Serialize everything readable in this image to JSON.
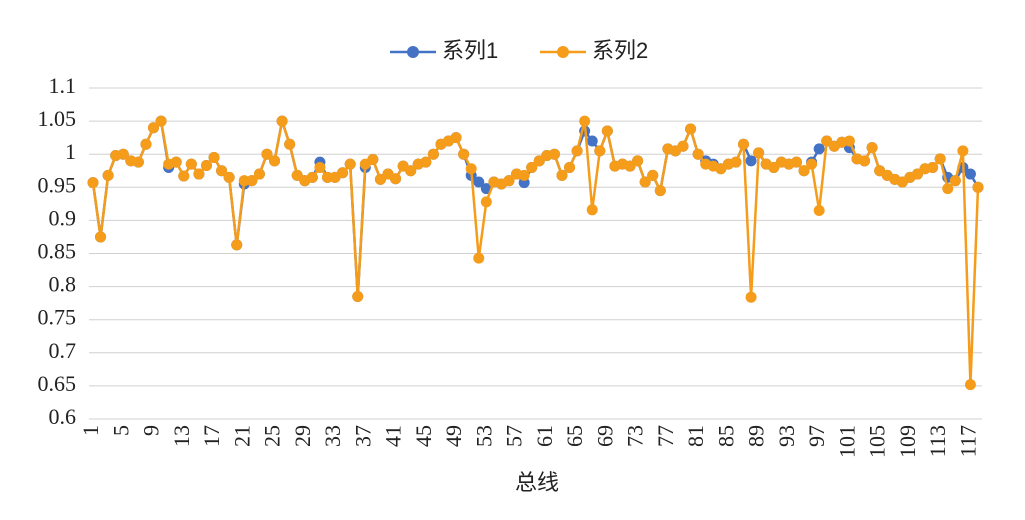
{
  "chart_data": {
    "type": "line",
    "xlabel": "总线",
    "categories": [
      "1",
      null,
      null,
      null,
      "5",
      null,
      null,
      null,
      "9",
      null,
      null,
      null,
      "13",
      null,
      null,
      null,
      "17",
      null,
      null,
      null,
      "21",
      null,
      null,
      null,
      "25",
      null,
      null,
      null,
      "29",
      null,
      null,
      null,
      "33",
      null,
      null,
      null,
      "37",
      null,
      null,
      null,
      "41",
      null,
      null,
      null,
      "45",
      null,
      null,
      null,
      "49",
      null,
      null,
      null,
      "53",
      null,
      null,
      null,
      "57",
      null,
      null,
      null,
      "61",
      null,
      null,
      null,
      "65",
      null,
      null,
      null,
      "69",
      null,
      null,
      null,
      "73",
      null,
      null,
      null,
      "77",
      null,
      null,
      null,
      "81",
      null,
      null,
      null,
      "85",
      null,
      null,
      null,
      "89",
      null,
      null,
      null,
      "93",
      null,
      null,
      null,
      "97",
      null,
      null,
      null,
      "101",
      null,
      null,
      null,
      "105",
      null,
      null,
      null,
      "109",
      null,
      null,
      null,
      "113",
      null,
      null,
      null,
      "117",
      null
    ],
    "series": [
      {
        "name": "系列1",
        "color": "#4472c4",
        "values": [
          0.957,
          0.875,
          0.968,
          0.998,
          1.0,
          0.99,
          0.988,
          1.015,
          1.04,
          1.05,
          0.98,
          0.988,
          0.967,
          0.985,
          0.97,
          0.983,
          0.995,
          0.975,
          0.965,
          0.863,
          0.955,
          0.96,
          0.97,
          1.0,
          0.99,
          1.05,
          1.015,
          0.968,
          0.96,
          0.965,
          0.988,
          0.965,
          0.965,
          0.972,
          0.985,
          0.785,
          0.98,
          0.992,
          0.962,
          0.97,
          0.963,
          0.982,
          0.975,
          0.985,
          0.988,
          1.0,
          1.015,
          1.02,
          1.025,
          1.0,
          0.968,
          0.958,
          0.948,
          0.958,
          0.955,
          0.96,
          0.97,
          0.957,
          0.98,
          0.99,
          0.998,
          1.0,
          0.968,
          0.98,
          1.005,
          1.035,
          1.02,
          1.005,
          1.035,
          0.982,
          0.985,
          0.982,
          0.99,
          0.958,
          0.968,
          0.945,
          1.008,
          1.005,
          1.012,
          1.038,
          1.0,
          0.99,
          0.985,
          0.978,
          0.985,
          0.988,
          1.015,
          0.99,
          1.002,
          0.985,
          0.98,
          0.988,
          0.985,
          0.988,
          0.975,
          0.988,
          1.008,
          1.02,
          1.012,
          1.018,
          1.01,
          0.993,
          0.99,
          1.01,
          0.975,
          0.968,
          0.962,
          0.958,
          0.965,
          0.97,
          0.978,
          0.98,
          0.993,
          0.965,
          0.96,
          0.98,
          0.97,
          0.95
        ]
      },
      {
        "name": "系列2",
        "color": "#f59c1a",
        "values": [
          0.957,
          0.875,
          0.968,
          0.998,
          1.0,
          0.99,
          0.988,
          1.015,
          1.04,
          1.05,
          0.985,
          0.988,
          0.967,
          0.985,
          0.97,
          0.983,
          0.995,
          0.975,
          0.965,
          0.863,
          0.96,
          0.96,
          0.97,
          1.0,
          0.99,
          1.05,
          1.015,
          0.968,
          0.96,
          0.965,
          0.98,
          0.965,
          0.965,
          0.972,
          0.985,
          0.785,
          0.985,
          0.992,
          0.962,
          0.97,
          0.963,
          0.982,
          0.975,
          0.985,
          0.988,
          1.0,
          1.015,
          1.02,
          1.025,
          1.0,
          0.978,
          0.843,
          0.928,
          0.958,
          0.955,
          0.96,
          0.97,
          0.968,
          0.98,
          0.99,
          0.998,
          1.0,
          0.968,
          0.98,
          1.005,
          1.05,
          0.916,
          1.005,
          1.035,
          0.982,
          0.985,
          0.982,
          0.99,
          0.958,
          0.968,
          0.945,
          1.008,
          1.005,
          1.012,
          1.038,
          1.0,
          0.985,
          0.982,
          0.978,
          0.985,
          0.988,
          1.015,
          0.784,
          1.002,
          0.985,
          0.98,
          0.988,
          0.985,
          0.988,
          0.975,
          0.985,
          0.915,
          1.02,
          1.012,
          1.018,
          1.02,
          0.993,
          0.99,
          1.01,
          0.975,
          0.968,
          0.962,
          0.958,
          0.965,
          0.97,
          0.978,
          0.98,
          0.993,
          0.948,
          0.96,
          1.005,
          0.652,
          0.95
        ]
      }
    ],
    "ylim": [
      0.6,
      1.1
    ],
    "yticks": [
      0.6,
      0.65,
      0.7,
      0.75,
      0.8,
      0.85,
      0.9,
      0.95,
      1,
      1.05,
      1.1
    ],
    "grid": true,
    "legend": "top"
  }
}
